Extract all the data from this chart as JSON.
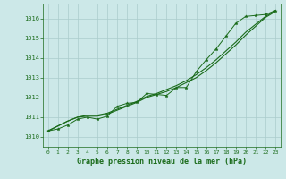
{
  "x": [
    0,
    1,
    2,
    3,
    4,
    5,
    6,
    7,
    8,
    9,
    10,
    11,
    12,
    13,
    14,
    15,
    16,
    17,
    18,
    19,
    20,
    21,
    22,
    23
  ],
  "line_markers": [
    1010.3,
    1010.4,
    1010.6,
    1010.9,
    1011.0,
    1010.9,
    1011.05,
    1011.55,
    1011.7,
    1011.75,
    1012.2,
    1012.15,
    1012.1,
    1012.5,
    1012.5,
    1013.3,
    1013.9,
    1014.45,
    1015.1,
    1015.75,
    1016.1,
    1016.15,
    1016.2,
    1016.4
  ],
  "line_straight1": [
    1010.3,
    1010.55,
    1010.8,
    1011.0,
    1011.1,
    1011.1,
    1011.2,
    1011.4,
    1011.6,
    1011.8,
    1012.05,
    1012.2,
    1012.4,
    1012.6,
    1012.85,
    1013.15,
    1013.5,
    1013.9,
    1014.35,
    1014.8,
    1015.3,
    1015.7,
    1016.1,
    1016.4
  ],
  "line_straight2": [
    1010.3,
    1010.55,
    1010.8,
    1011.0,
    1011.05,
    1011.05,
    1011.15,
    1011.35,
    1011.55,
    1011.75,
    1012.0,
    1012.15,
    1012.3,
    1012.5,
    1012.75,
    1013.0,
    1013.35,
    1013.75,
    1014.2,
    1014.65,
    1015.15,
    1015.6,
    1016.05,
    1016.35
  ],
  "bg_color": "#cce8e8",
  "grid_color": "#aacccc",
  "line_color": "#1a6b1a",
  "xlabel": "Graphe pression niveau de la mer (hPa)",
  "ylim": [
    1009.5,
    1016.75
  ],
  "xlim": [
    -0.5,
    23.5
  ],
  "yticks": [
    1010,
    1011,
    1012,
    1013,
    1014,
    1015,
    1016
  ],
  "xticks": [
    0,
    1,
    2,
    3,
    4,
    5,
    6,
    7,
    8,
    9,
    10,
    11,
    12,
    13,
    14,
    15,
    16,
    17,
    18,
    19,
    20,
    21,
    22,
    23
  ]
}
